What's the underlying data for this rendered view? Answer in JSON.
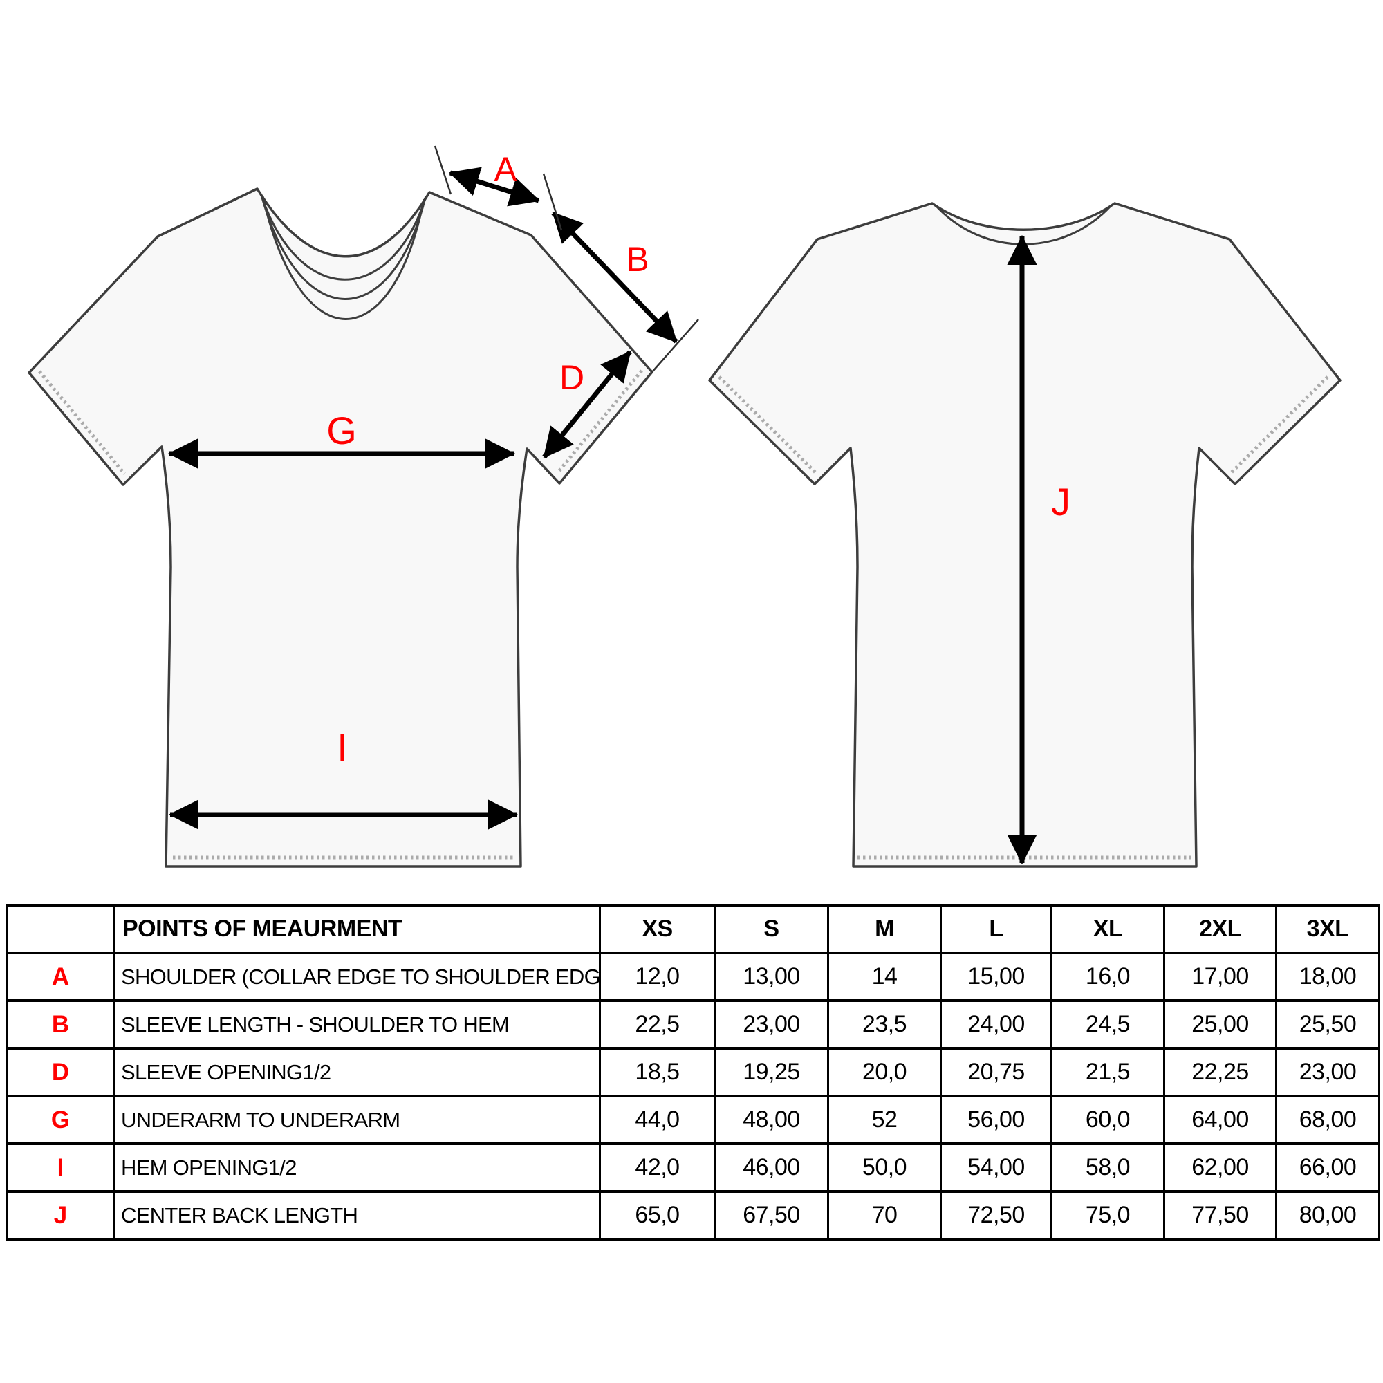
{
  "colors": {
    "label_red": "#ff0000",
    "outline": "#3d3d3d",
    "shirt_fill": "#f8f8f8",
    "stitch": "#ababab",
    "dimension_line": "#000000",
    "table_border": "#000000",
    "text": "#000000"
  },
  "diagram": {
    "front_view": {
      "labels": {
        "a": "A",
        "b": "B",
        "d": "D",
        "g": "G",
        "i": "I"
      }
    },
    "back_view": {
      "labels": {
        "j": "J"
      }
    }
  },
  "table": {
    "headers": [
      "",
      "POINTS OF MEAURMENT",
      "XS",
      "S",
      "M",
      "L",
      "XL",
      "2XL",
      "3XL"
    ],
    "rows": [
      {
        "letter": "A",
        "point": "SHOULDER (COLLAR EDGE TO SHOULDER EDGE)",
        "values": [
          "12,0",
          "13,00",
          "14",
          "15,00",
          "16,0",
          "17,00",
          "18,00"
        ]
      },
      {
        "letter": "B",
        "point": "SLEEVE LENGTH - SHOULDER TO HEM",
        "values": [
          "22,5",
          "23,00",
          "23,5",
          "24,00",
          "24,5",
          "25,00",
          "25,50"
        ]
      },
      {
        "letter": "D",
        "point": "SLEEVE OPENING1/2",
        "values": [
          "18,5",
          "19,25",
          "20,0",
          "20,75",
          "21,5",
          "22,25",
          "23,00"
        ]
      },
      {
        "letter": "G",
        "point": "UNDERARM TO UNDERARM",
        "values": [
          "44,0",
          "48,00",
          "52",
          "56,00",
          "60,0",
          "64,00",
          "68,00"
        ]
      },
      {
        "letter": "I",
        "point": "HEM OPENING1/2",
        "values": [
          "42,0",
          "46,00",
          "50,0",
          "54,00",
          "58,0",
          "62,00",
          "66,00"
        ]
      },
      {
        "letter": "J",
        "point": "CENTER BACK LENGTH",
        "values": [
          "65,0",
          "67,50",
          "70",
          "72,50",
          "75,0",
          "77,50",
          "80,00"
        ]
      }
    ]
  }
}
